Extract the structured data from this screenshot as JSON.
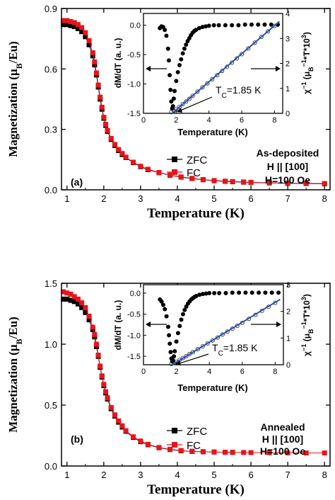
{
  "chart_data": [
    {
      "type": "scatter",
      "panel_label": "(a)",
      "xlabel": "Temperature (K)",
      "ylabel": "Magnetization (μB/Eu)",
      "xlim": [
        0.85,
        8.15
      ],
      "ylim": [
        0,
        0.9
      ],
      "xticks": [
        1,
        2,
        3,
        4,
        5,
        6,
        7,
        8
      ],
      "yticks": [
        0.0,
        0.3,
        0.6,
        0.9
      ],
      "legend": {
        "position": "center-left",
        "entries": [
          "ZFC",
          "FC"
        ]
      },
      "annotation_lines": [
        "As-deposited",
        "H || [100]",
        "H=100 Oe"
      ],
      "colors": {
        "ZFC": "#000000",
        "FC": "#e8141b",
        "fit": "#2a4fb5"
      },
      "series": [
        {
          "name": "ZFC",
          "marker": "square",
          "x": [
            0.9,
            1.0,
            1.1,
            1.2,
            1.3,
            1.4,
            1.5,
            1.6,
            1.7,
            1.75,
            1.8,
            1.85,
            1.9,
            1.95,
            2.0,
            2.05,
            2.1,
            2.2,
            2.3,
            2.4,
            2.5,
            2.6,
            2.8,
            3.0,
            3.2,
            3.5,
            3.8,
            4.1,
            4.4,
            4.7,
            5.0,
            5.3,
            5.5,
            5.8,
            6.0,
            6.5,
            7.0,
            7.5,
            8.0
          ],
          "y": [
            0.82,
            0.82,
            0.815,
            0.81,
            0.8,
            0.785,
            0.76,
            0.72,
            0.665,
            0.62,
            0.57,
            0.51,
            0.45,
            0.4,
            0.355,
            0.32,
            0.29,
            0.25,
            0.22,
            0.195,
            0.175,
            0.16,
            0.135,
            0.115,
            0.1,
            0.085,
            0.072,
            0.063,
            0.056,
            0.05,
            0.045,
            0.042,
            0.04,
            0.038,
            0.036,
            0.034,
            0.032,
            0.031,
            0.03
          ]
        },
        {
          "name": "FC",
          "marker": "square",
          "x": [
            0.9,
            1.0,
            1.1,
            1.2,
            1.3,
            1.4,
            1.5,
            1.6,
            1.7,
            1.75,
            1.8,
            1.85,
            1.9,
            1.95,
            2.0,
            2.05,
            2.1,
            2.2,
            2.3,
            2.4,
            2.5,
            2.6,
            2.8,
            3.0,
            3.2,
            3.5,
            3.8,
            4.1,
            4.4,
            4.7,
            5.0,
            5.3,
            5.5,
            5.8,
            6.0,
            6.5,
            7.0,
            7.5,
            8.0
          ],
          "y": [
            0.84,
            0.84,
            0.835,
            0.83,
            0.82,
            0.805,
            0.78,
            0.74,
            0.68,
            0.635,
            0.58,
            0.52,
            0.46,
            0.41,
            0.36,
            0.325,
            0.295,
            0.255,
            0.225,
            0.2,
            0.18,
            0.162,
            0.137,
            0.117,
            0.102,
            0.086,
            0.073,
            0.064,
            0.057,
            0.051,
            0.046,
            0.043,
            0.041,
            0.039,
            0.037,
            0.035,
            0.033,
            0.032,
            0.031
          ]
        }
      ],
      "inset": {
        "xlabel": "Temperature (K)",
        "ylabel_left": "dM/dT (a. u.)",
        "ylabel_right": "χ⁻¹ (μB⁻¹*T*10³)",
        "xlim": [
          0,
          8.5
        ],
        "ylim_left": [
          -1.5,
          0.2
        ],
        "ylim_right": [
          0,
          4
        ],
        "xticks": [
          0,
          2,
          4,
          6,
          8
        ],
        "yticks_left": [
          -1.5,
          -1.0,
          -0.5,
          0.0
        ],
        "yticks_right": [
          0,
          1,
          2,
          3,
          4
        ],
        "tc_label": "T",
        "tc_subscript": "C",
        "tc_value": "=1.85 K",
        "dMdT": {
          "x": [
            1.0,
            1.1,
            1.2,
            1.3,
            1.4,
            1.5,
            1.55,
            1.6,
            1.65,
            1.7,
            1.75,
            1.8,
            1.85,
            1.9,
            2.0,
            2.1,
            2.2,
            2.3,
            2.4,
            2.5,
            2.6,
            2.7,
            2.8,
            2.9,
            3.0,
            3.1,
            3.2,
            3.4,
            3.6,
            3.8,
            4.0,
            4.3,
            4.6,
            5.0,
            5.4,
            5.8,
            6.2,
            6.6,
            7.0,
            7.4,
            7.8,
            8.2
          ],
          "y": [
            -0.05,
            -0.02,
            -0.03,
            -0.08,
            -0.18,
            -0.4,
            -0.6,
            -0.85,
            -1.1,
            -1.3,
            -1.42,
            -1.38,
            -1.25,
            -1.12,
            -0.95,
            -0.8,
            -0.68,
            -0.58,
            -0.48,
            -0.4,
            -0.33,
            -0.27,
            -0.22,
            -0.17,
            -0.13,
            -0.1,
            -0.08,
            -0.05,
            -0.03,
            -0.02,
            -0.01,
            0.0,
            0.0,
            0.0,
            0.0,
            0.0,
            0.01,
            0.01,
            0.01,
            0.01,
            0.01,
            0.01
          ]
        },
        "chi_inv": {
          "x": [
            1.7,
            1.85,
            2.0,
            2.2,
            2.4,
            2.6,
            2.8,
            3.0,
            3.3,
            3.6,
            3.9,
            4.2,
            4.5,
            4.8,
            5.1,
            5.4,
            5.7,
            6.0,
            6.4,
            6.8,
            7.2,
            7.6,
            8.0
          ],
          "y": [
            0.05,
            0.1,
            0.16,
            0.26,
            0.37,
            0.47,
            0.58,
            0.7,
            0.87,
            1.04,
            1.2,
            1.37,
            1.53,
            1.7,
            1.86,
            2.03,
            2.2,
            2.37,
            2.6,
            2.83,
            3.06,
            3.28,
            3.5
          ]
        },
        "fit_line": {
          "x": [
            1.75,
            8.3
          ],
          "y": [
            0.0,
            3.68
          ]
        }
      }
    },
    {
      "type": "scatter",
      "panel_label": "(b)",
      "xlabel": "Temperature (K)",
      "ylabel": "Magnetization (μB/Eu)",
      "xlim": [
        0.85,
        8.15
      ],
      "ylim": [
        0,
        1.5
      ],
      "xticks": [
        1,
        2,
        3,
        4,
        5,
        6,
        7,
        8
      ],
      "yticks": [
        0.0,
        0.5,
        1.0,
        1.5
      ],
      "legend": {
        "position": "center-left",
        "entries": [
          "ZFC",
          "FC"
        ]
      },
      "annotation_lines": [
        "Annealed",
        "H || [100]",
        "H=100 Oe"
      ],
      "colors": {
        "ZFC": "#000000",
        "FC": "#e8141b",
        "fit": "#2a4fb5"
      },
      "series": [
        {
          "name": "ZFC",
          "marker": "square",
          "x": [
            0.9,
            1.0,
            1.1,
            1.2,
            1.3,
            1.4,
            1.5,
            1.6,
            1.7,
            1.75,
            1.8,
            1.85,
            1.9,
            1.95,
            2.0,
            2.05,
            2.1,
            2.2,
            2.3,
            2.4,
            2.5,
            2.6,
            2.8,
            3.0,
            3.2,
            3.5,
            3.8,
            4.1,
            4.4,
            4.7,
            5.0,
            5.3,
            5.5
          ],
          "y": [
            1.37,
            1.37,
            1.36,
            1.35,
            1.33,
            1.3,
            1.26,
            1.2,
            1.12,
            1.06,
            0.98,
            0.9,
            0.81,
            0.73,
            0.66,
            0.6,
            0.55,
            0.47,
            0.41,
            0.36,
            0.32,
            0.285,
            0.235,
            0.2,
            0.175,
            0.15,
            0.135,
            0.125,
            0.12,
            0.117,
            0.115,
            0.113,
            0.112
          ]
        },
        {
          "name": "FC",
          "marker": "square",
          "x": [
            0.9,
            1.0,
            1.1,
            1.2,
            1.3,
            1.4,
            1.5,
            1.6,
            1.7,
            1.75,
            1.8,
            1.85,
            1.9,
            1.95,
            2.0,
            2.05,
            2.1,
            2.2,
            2.3,
            2.4,
            2.5,
            2.6,
            2.8,
            3.0,
            3.2,
            3.5,
            3.8,
            4.1,
            4.4,
            4.7,
            5.0,
            5.3,
            5.5,
            5.8,
            6.0,
            6.5,
            7.0,
            7.5,
            8.0
          ],
          "y": [
            1.43,
            1.42,
            1.41,
            1.39,
            1.37,
            1.34,
            1.3,
            1.23,
            1.14,
            1.08,
            1.0,
            0.91,
            0.82,
            0.74,
            0.67,
            0.61,
            0.56,
            0.48,
            0.42,
            0.37,
            0.33,
            0.29,
            0.24,
            0.205,
            0.178,
            0.152,
            0.137,
            0.127,
            0.121,
            0.117,
            0.115,
            0.113,
            0.112,
            0.111,
            0.11,
            0.109,
            0.108,
            0.107,
            0.107
          ]
        }
      ],
      "inset": {
        "xlabel": "Temperature (K)",
        "ylabel_left": "dM/dT (a. u.)",
        "ylabel_right": "χ⁻¹ (μB⁻¹*T*10³)",
        "xlim": [
          0,
          8.5
        ],
        "ylim_left": [
          -1.7,
          0.2
        ],
        "ylim_right": [
          0,
          3
        ],
        "xticks": [
          0,
          2,
          4,
          6,
          8
        ],
        "yticks_left": [
          -1.5,
          -1.0,
          -0.5,
          0.0
        ],
        "yticks_right": [
          0,
          1,
          2,
          3
        ],
        "tc_label": "T",
        "tc_subscript": "C",
        "tc_value": "=1.85 K",
        "dMdT": {
          "x": [
            1.0,
            1.1,
            1.2,
            1.3,
            1.4,
            1.5,
            1.55,
            1.6,
            1.65,
            1.7,
            1.75,
            1.8,
            1.85,
            1.9,
            2.0,
            2.1,
            2.2,
            2.3,
            2.4,
            2.5,
            2.6,
            2.7,
            2.8,
            2.9,
            3.0,
            3.1,
            3.2,
            3.4,
            3.6,
            3.8,
            4.0,
            4.3,
            4.6,
            5.0,
            5.4,
            5.8,
            6.2,
            6.6,
            7.0,
            7.4,
            7.8,
            8.2
          ],
          "y": [
            -0.15,
            -0.2,
            -0.28,
            -0.38,
            -0.55,
            -0.8,
            -1.0,
            -1.2,
            -1.4,
            -1.55,
            -1.62,
            -1.6,
            -1.5,
            -1.38,
            -1.15,
            -0.95,
            -0.78,
            -0.63,
            -0.5,
            -0.4,
            -0.32,
            -0.25,
            -0.2,
            -0.15,
            -0.12,
            -0.09,
            -0.07,
            -0.04,
            -0.02,
            -0.01,
            0.0,
            0.0,
            0.0,
            0.0,
            0.01,
            0.01,
            0.01,
            0.01,
            0.01,
            0.01,
            0.01,
            0.01
          ]
        },
        "chi_inv": {
          "x": [
            1.7,
            1.85,
            2.0,
            2.2,
            2.4,
            2.6,
            2.8,
            3.0,
            3.3,
            3.6,
            3.9,
            4.2,
            4.5,
            4.8,
            5.1,
            5.4,
            5.7,
            6.0,
            6.4,
            6.8,
            7.2,
            7.6,
            8.0
          ],
          "y": [
            0.03,
            0.07,
            0.11,
            0.18,
            0.25,
            0.32,
            0.4,
            0.47,
            0.58,
            0.69,
            0.8,
            0.91,
            1.02,
            1.13,
            1.24,
            1.35,
            1.46,
            1.57,
            1.72,
            1.87,
            2.02,
            2.17,
            2.32
          ]
        },
        "fit_line": {
          "x": [
            1.75,
            8.3
          ],
          "y": [
            0.0,
            2.45
          ]
        }
      }
    }
  ]
}
